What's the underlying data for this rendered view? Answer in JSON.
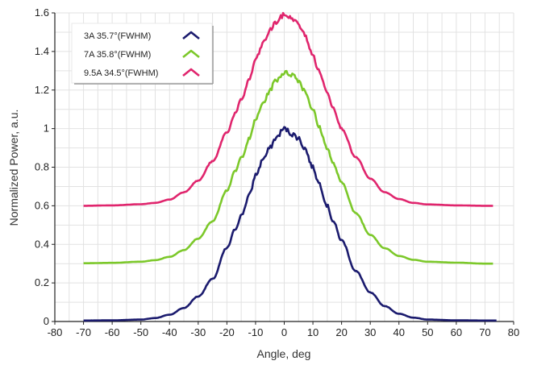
{
  "chart_data": {
    "type": "line",
    "xlabel": "Angle, deg",
    "ylabel": "Normalized Power, a.u.",
    "xlim": [
      -80,
      80
    ],
    "ylim": [
      0,
      1.6
    ],
    "x_ticks": [
      "-80",
      "-70",
      "-60",
      "-50",
      "-40",
      "-30",
      "-20",
      "-10",
      "0",
      "10",
      "20",
      "30",
      "40",
      "50",
      "60",
      "70",
      "80"
    ],
    "y_ticks": [
      "0",
      "0.2",
      "0.4",
      "0.6",
      "0.8",
      "1",
      "1.2",
      "1.4",
      "1.6"
    ],
    "grid": true,
    "legend_position": "top-left",
    "series": [
      {
        "name": "3A 35.7°(FWHM)",
        "color": "#1b1b6e",
        "x": [
          -70,
          -60,
          -50,
          -45,
          -40,
          -35,
          -30,
          -25,
          -20,
          -17,
          -15,
          -12,
          -10,
          -7,
          -5,
          -3,
          0,
          3,
          5,
          7,
          10,
          12,
          15,
          17,
          20,
          25,
          30,
          35,
          40,
          45,
          50,
          60,
          70,
          74
        ],
        "y": [
          0.005,
          0.006,
          0.01,
          0.018,
          0.035,
          0.07,
          0.13,
          0.22,
          0.38,
          0.48,
          0.55,
          0.66,
          0.76,
          0.85,
          0.9,
          0.95,
          1.0,
          0.97,
          0.95,
          0.9,
          0.8,
          0.72,
          0.6,
          0.52,
          0.42,
          0.26,
          0.15,
          0.08,
          0.04,
          0.02,
          0.01,
          0.006,
          0.005,
          0.005
        ]
      },
      {
        "name": "7A 35.8°(FWHM)",
        "color": "#7cc82a",
        "x": [
          -70,
          -60,
          -50,
          -45,
          -40,
          -35,
          -30,
          -25,
          -20,
          -17,
          -15,
          -12,
          -10,
          -7,
          -5,
          -3,
          0,
          3,
          5,
          7,
          10,
          12,
          15,
          17,
          20,
          25,
          30,
          35,
          40,
          45,
          50,
          60,
          70,
          73
        ],
        "y": [
          0.302,
          0.304,
          0.31,
          0.318,
          0.335,
          0.37,
          0.43,
          0.52,
          0.68,
          0.78,
          0.85,
          0.95,
          1.05,
          1.14,
          1.2,
          1.25,
          1.29,
          1.28,
          1.25,
          1.2,
          1.1,
          1.01,
          0.9,
          0.82,
          0.72,
          0.56,
          0.45,
          0.38,
          0.34,
          0.32,
          0.31,
          0.305,
          0.3,
          0.3
        ]
      },
      {
        "name": "9.5A 34.5°(FWHM)",
        "color": "#e0256d",
        "x": [
          -70,
          -60,
          -50,
          -45,
          -40,
          -35,
          -30,
          -25,
          -20,
          -17,
          -15,
          -12,
          -10,
          -7,
          -5,
          -3,
          0,
          3,
          5,
          7,
          10,
          12,
          15,
          17,
          20,
          25,
          30,
          35,
          40,
          45,
          50,
          60,
          70,
          73
        ],
        "y": [
          0.6,
          0.602,
          0.608,
          0.615,
          0.632,
          0.67,
          0.73,
          0.83,
          0.98,
          1.08,
          1.15,
          1.26,
          1.36,
          1.45,
          1.51,
          1.55,
          1.59,
          1.57,
          1.54,
          1.49,
          1.38,
          1.3,
          1.19,
          1.11,
          1.0,
          0.85,
          0.74,
          0.67,
          0.635,
          0.615,
          0.607,
          0.602,
          0.6,
          0.6
        ]
      }
    ]
  }
}
